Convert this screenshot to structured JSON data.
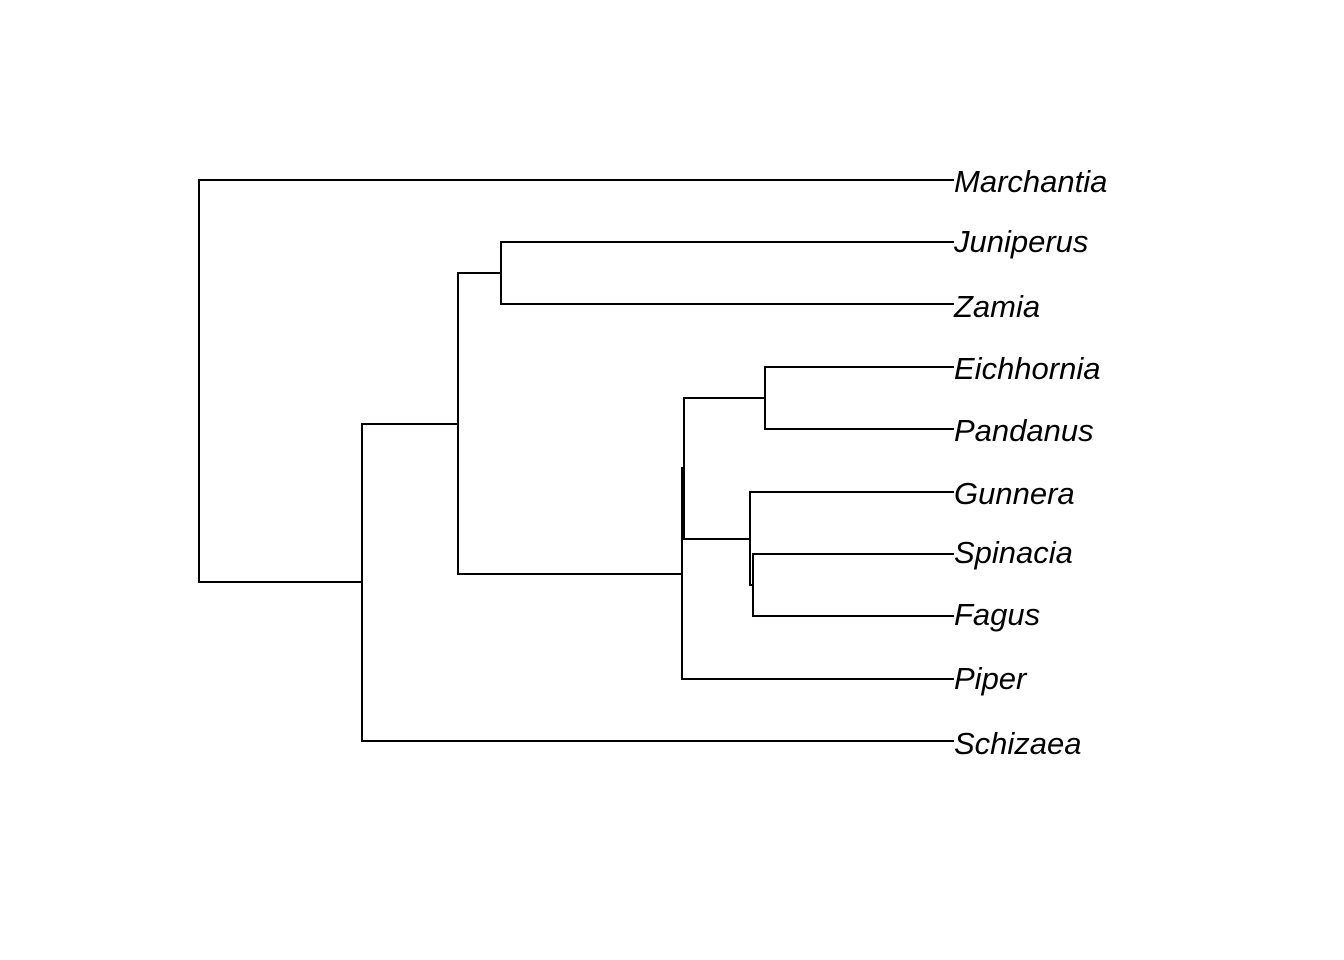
{
  "tree": {
    "type": "phylogram",
    "line_color": "#000000",
    "tips": [
      "Marchantia",
      "Juniperus",
      "Zamia",
      "Eichhornia",
      "Pandanus",
      "Gunnera",
      "Spinacia",
      "Fagus",
      "Piper",
      "Schizaea"
    ]
  }
}
